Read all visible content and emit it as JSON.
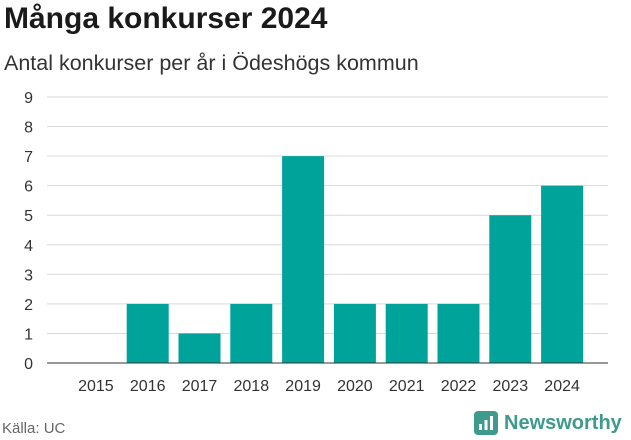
{
  "header": {
    "title": "Många konkurser 2024",
    "subtitle": "Antal konkurser per år i Ödeshögs kommun"
  },
  "footer": {
    "source": "Källa: UC",
    "brand": "Newsworthy"
  },
  "colors": {
    "bar": "#00a39a",
    "grid": "#d9d9d9",
    "axis": "#333333",
    "brand": "#3e9a8c"
  },
  "chart_data": {
    "type": "bar",
    "title": "Många konkurser 2024",
    "subtitle": "Antal konkurser per år i Ödeshögs kommun",
    "categories": [
      "2015",
      "2016",
      "2017",
      "2018",
      "2019",
      "2020",
      "2021",
      "2022",
      "2023",
      "2024"
    ],
    "values": [
      0,
      2,
      1,
      2,
      7,
      2,
      2,
      2,
      5,
      6
    ],
    "ylim": [
      0,
      9
    ],
    "yticks": [
      0,
      1,
      2,
      3,
      4,
      5,
      6,
      7,
      8,
      9
    ],
    "grid": true,
    "legend": "none"
  }
}
